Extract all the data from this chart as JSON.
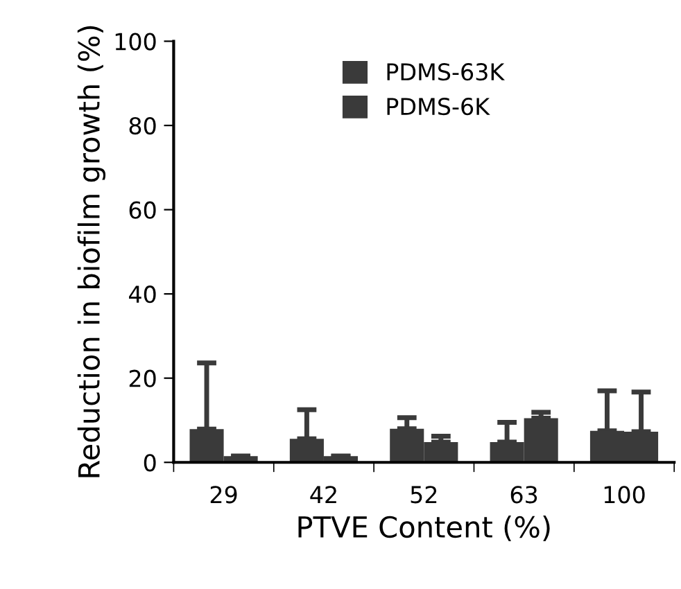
{
  "chart_data": {
    "type": "bar",
    "xlabel": "PTVE Content (%)",
    "ylabel": "Reduction in biofilm growth (%)",
    "categories": [
      "29",
      "42",
      "52",
      "63",
      "100"
    ],
    "series": [
      {
        "name": "PDMS-63K",
        "color": "#3a3a3a",
        "values": [
          7.9,
          5.6,
          8,
          4.8,
          7.5
        ],
        "errors": [
          [
            7.9,
            23.6
          ],
          [
            5.6,
            12.5
          ],
          [
            8,
            10.6
          ],
          [
            4.8,
            9.5
          ],
          [
            7.5,
            17
          ]
        ]
      },
      {
        "name": "PDMS-6K",
        "color": "#3a3a3a",
        "values": [
          1.5,
          1.5,
          4.8,
          10.5,
          7.3
        ],
        "errors": [
          [
            1.5,
            1.5
          ],
          [
            1.5,
            1.5
          ],
          [
            4.8,
            6.2
          ],
          [
            10.5,
            11.9
          ],
          [
            7.3,
            16.7
          ]
        ]
      }
    ],
    "ylim": [
      0,
      100
    ],
    "yticks": [
      0,
      20,
      40,
      60,
      80,
      100
    ],
    "grid": false,
    "legend": "top"
  }
}
